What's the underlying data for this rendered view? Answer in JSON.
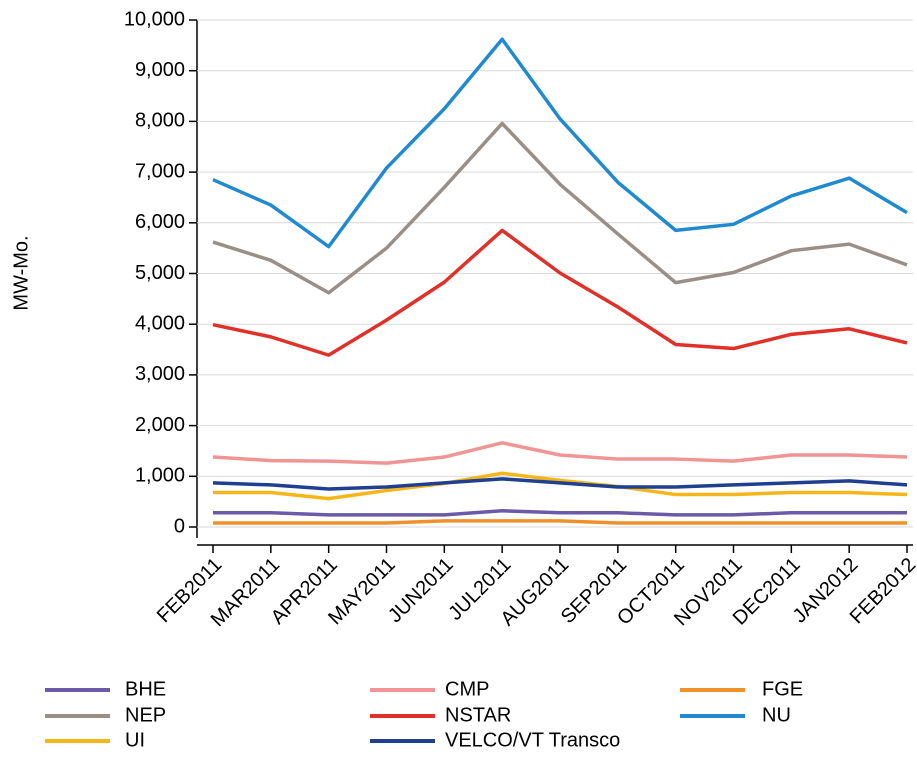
{
  "chart_data": {
    "type": "line",
    "y_label": "MW-Mo.",
    "categories": [
      "FEB2011",
      "MAR2011",
      "APR2011",
      "MAY2011",
      "JUN2011",
      "JUL2011",
      "AUG2011",
      "SEP2011",
      "OCT2011",
      "NOV2011",
      "DEC2011",
      "JAN2012",
      "FEB2012"
    ],
    "ylim": [
      0,
      10000
    ],
    "yticks": [
      0,
      {
        "value": 1000,
        "label": "1,000"
      },
      {
        "value": 2000,
        "label": "2,000"
      },
      {
        "value": 3000,
        "label": "3,000"
      },
      {
        "value": 4000,
        "label": "4,000"
      },
      {
        "value": 5000,
        "label": "5,000"
      },
      {
        "value": 6000,
        "label": "6,000"
      },
      {
        "value": 7000,
        "label": "7,000"
      },
      {
        "value": 8000,
        "label": "8,000"
      },
      {
        "value": 9000,
        "label": "9,000"
      },
      {
        "value": 10000,
        "label": "10,000"
      }
    ],
    "grid": true,
    "legend": "bottom",
    "series": [
      {
        "name": "BHE",
        "color": "#6a5aa8",
        "values": [
          280,
          280,
          240,
          240,
          240,
          320,
          280,
          280,
          240,
          240,
          280,
          280,
          280
        ]
      },
      {
        "name": "CMP",
        "color": "#f09494",
        "values": [
          1380,
          1310,
          1300,
          1260,
          1380,
          1660,
          1420,
          1340,
          1340,
          1300,
          1420,
          1420,
          1380
        ]
      },
      {
        "name": "FGE",
        "color": "#f0902a",
        "values": [
          80,
          80,
          80,
          80,
          120,
          120,
          120,
          80,
          80,
          80,
          80,
          80,
          80
        ]
      },
      {
        "name": "NEP",
        "color": "#9a8f86",
        "values": [
          5620,
          5260,
          4620,
          5500,
          6700,
          7960,
          6760,
          5780,
          4820,
          5020,
          5450,
          5580,
          5170
        ]
      },
      {
        "name": "NSTAR",
        "color": "#e03027",
        "values": [
          3990,
          3750,
          3390,
          4080,
          4830,
          5850,
          5010,
          4340,
          3600,
          3520,
          3800,
          3910,
          3630
        ]
      },
      {
        "name": "NU",
        "color": "#1f8ad0",
        "values": [
          6850,
          6350,
          5530,
          7080,
          8250,
          9620,
          8050,
          6800,
          5850,
          5970,
          6530,
          6880,
          6200
        ]
      },
      {
        "name": "UI",
        "color": "#f5b61a",
        "values": [
          680,
          680,
          560,
          720,
          860,
          1060,
          920,
          800,
          640,
          640,
          680,
          680,
          640
        ]
      },
      {
        "name": "VELCO/VT Transco",
        "color": "#1f3f90",
        "values": [
          870,
          830,
          750,
          790,
          870,
          950,
          870,
          790,
          790,
          830,
          870,
          910,
          830
        ]
      }
    ]
  }
}
